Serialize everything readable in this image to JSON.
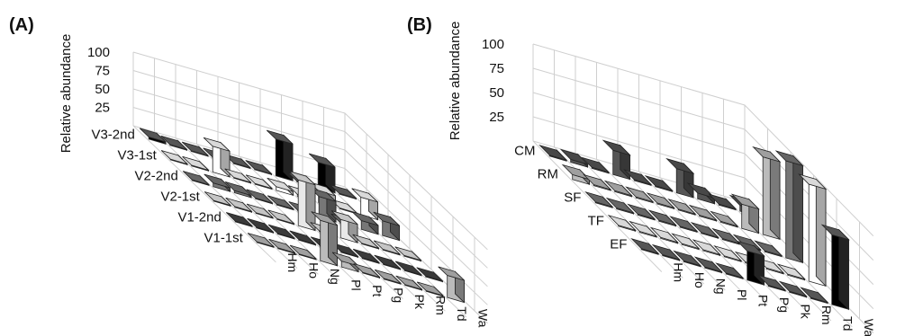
{
  "chart_data": [
    {
      "type": "bar3d",
      "panel_label": "(A)",
      "ylabel": "Relative abundance",
      "yticks": [
        25,
        50,
        75,
        100
      ],
      "ylim": [
        0,
        100
      ],
      "categories": [
        "Hm",
        "Ho",
        "Ng",
        "Pl",
        "Pt",
        "Pg",
        "Pk",
        "Rm",
        "Td",
        "Wa"
      ],
      "series": [
        {
          "name": "V3-2nd",
          "color": "#000000",
          "values": [
            3,
            1,
            1,
            1,
            1,
            1,
            50,
            1,
            35,
            1
          ]
        },
        {
          "name": "V3-1st",
          "color": "#ffffff",
          "values": [
            1,
            1,
            35,
            1,
            1,
            5,
            3,
            16,
            1,
            24
          ]
        },
        {
          "name": "V2-2nd",
          "color": "#777777",
          "values": [
            1,
            5,
            3,
            1,
            1,
            1,
            28,
            1,
            12,
            20
          ]
        },
        {
          "name": "V2-1st",
          "color": "#e8e8e8",
          "values": [
            1,
            1,
            1,
            1,
            62,
            1,
            25,
            1,
            1,
            1
          ]
        },
        {
          "name": "V1-2nd",
          "color": "#444444",
          "values": [
            1,
            1,
            1,
            1,
            1,
            1,
            1,
            1,
            1,
            1
          ]
        },
        {
          "name": "V1-1st",
          "color": "#bbbbbb",
          "values": [
            1,
            1,
            1,
            55,
            8,
            1,
            1,
            1,
            1,
            30
          ]
        }
      ]
    },
    {
      "type": "bar3d",
      "panel_label": "(B)",
      "ylabel": "Relative abundance",
      "yticks": [
        25,
        50,
        75,
        100
      ],
      "ylim": [
        0,
        100
      ],
      "categories": [
        "Hm",
        "Ho",
        "Ng",
        "Pl",
        "Pt",
        "Pg",
        "Pk",
        "Rm",
        "Td",
        "Wa"
      ],
      "series": [
        {
          "name": "CM",
          "color": "#555555",
          "values": [
            1,
            3,
            1,
            25,
            1,
            1,
            25,
            6,
            1,
            6
          ]
        },
        {
          "name": "RM",
          "color": "#bbbbbb",
          "values": [
            5,
            1,
            1,
            1,
            1,
            1,
            1,
            1,
            25,
            80
          ]
        },
        {
          "name": "SF",
          "color": "#777777",
          "values": [
            1,
            1,
            1,
            1,
            1,
            1,
            1,
            1,
            1,
            100
          ]
        },
        {
          "name": "TF",
          "color": "#ffffff",
          "values": [
            1,
            1,
            1,
            1,
            1,
            1,
            1,
            1,
            1,
            100
          ]
        },
        {
          "name": "EF",
          "color": "#000000",
          "values": [
            1,
            1,
            1,
            1,
            1,
            30,
            1,
            1,
            1,
            72
          ]
        }
      ]
    }
  ]
}
